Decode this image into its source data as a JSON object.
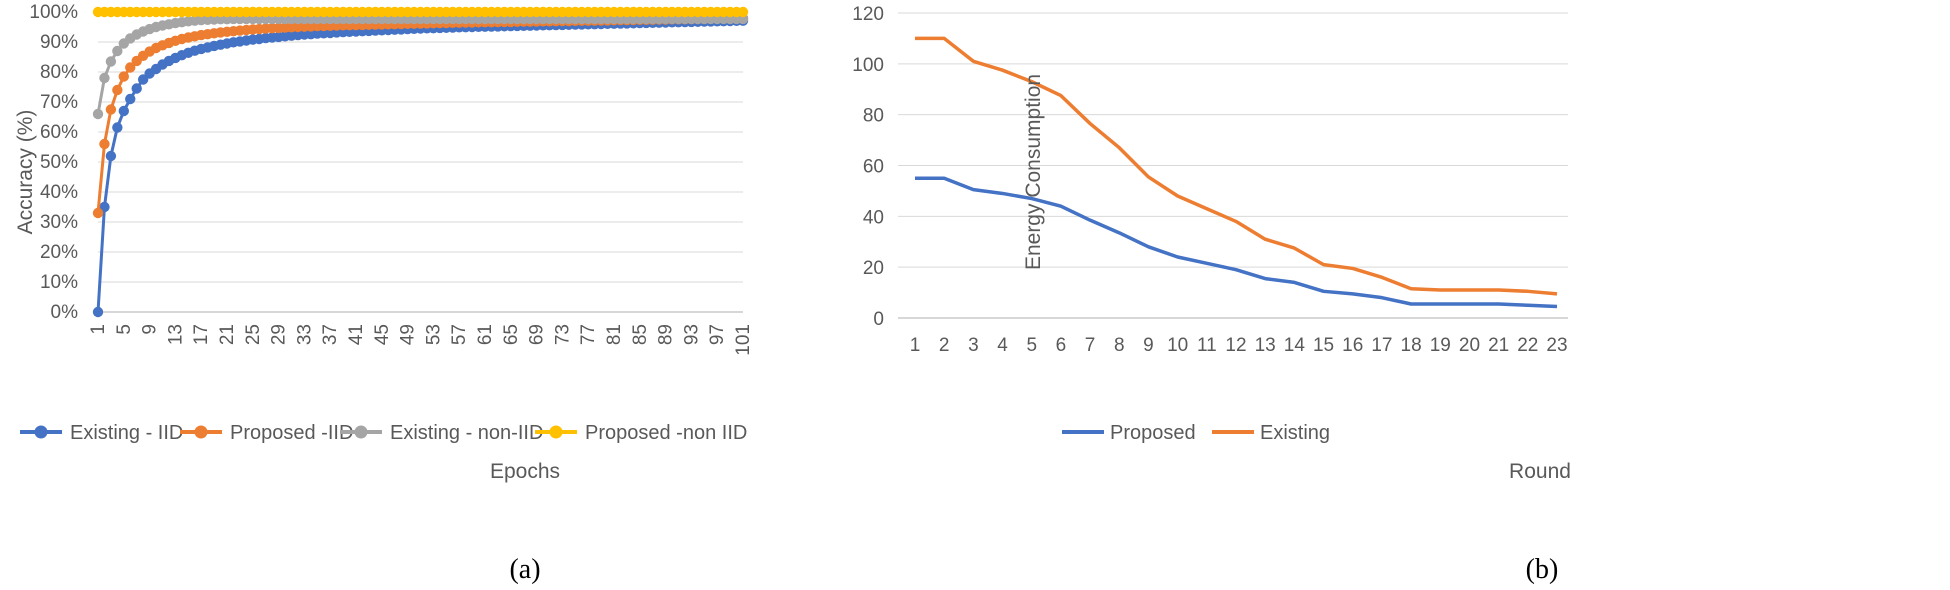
{
  "colors": {
    "blue": "#4472c4",
    "orange": "#ed7d31",
    "gray": "#a5a5a5",
    "yellow": "#ffc000",
    "grid": "#d9d9d9",
    "text": "#595959"
  },
  "captions": {
    "a": "(a)",
    "b": "(b)"
  },
  "chart_data": [
    {
      "type": "line",
      "xlabel": "Epochs",
      "ylabel": "Accuracy (%)",
      "ylim": [
        0,
        100
      ],
      "xlim": [
        1,
        101
      ],
      "y_ticks": [
        "0%",
        "10%",
        "20%",
        "30%",
        "40%",
        "50%",
        "60%",
        "70%",
        "80%",
        "90%",
        "100%"
      ],
      "x_ticks": [
        "1",
        "5",
        "9",
        "13",
        "17",
        "21",
        "25",
        "29",
        "33",
        "37",
        "41",
        "45",
        "49",
        "53",
        "57",
        "61",
        "65",
        "69",
        "73",
        "77",
        "81",
        "85",
        "89",
        "93",
        "97",
        "101"
      ],
      "grid": true,
      "legend": "bottom",
      "markers": true,
      "series": [
        {
          "name": "Existing - IID",
          "color": "#4472c4",
          "values": [
            0,
            35,
            52,
            61.5,
            67,
            71,
            74.5,
            77.5,
            79.5,
            81,
            82.5,
            83.7,
            84.7,
            85.6,
            86.4,
            87.1,
            87.7,
            88.2,
            88.7,
            89.1,
            89.5,
            89.9,
            90.2,
            90.5,
            90.8,
            91.0,
            91.3,
            91.5,
            91.7,
            91.9,
            92.1,
            92.3,
            92.5,
            92.6,
            92.8,
            92.9,
            93.0,
            93.2,
            93.3,
            93.4,
            93.5,
            93.6,
            93.7,
            93.8,
            93.9,
            94.0,
            94.1,
            94.2,
            94.3,
            94.4,
            94.5,
            94.55,
            94.6,
            94.7,
            94.75,
            94.8,
            94.9,
            94.95,
            95.0,
            95.05,
            95.1,
            95.15,
            95.2,
            95.25,
            95.3,
            95.35,
            95.4,
            95.45,
            95.5,
            95.55,
            95.6,
            95.65,
            95.7,
            95.75,
            95.8,
            95.85,
            95.9,
            95.95,
            96.0,
            96.05,
            96.1,
            96.15,
            96.2,
            96.25,
            96.3,
            96.35,
            96.4,
            96.45,
            96.5,
            96.55,
            96.6,
            96.65,
            96.7,
            96.75,
            96.8,
            96.85,
            96.9,
            96.95,
            97.0,
            97.05,
            97.1
          ]
        },
        {
          "name": "Proposed -IID",
          "color": "#ed7d31",
          "values": [
            33,
            56,
            67.5,
            74,
            78.5,
            81.5,
            83.7,
            85.4,
            86.8,
            88.0,
            88.9,
            89.7,
            90.4,
            91.0,
            91.5,
            91.9,
            92.3,
            92.6,
            92.9,
            93.2,
            93.4,
            93.6,
            93.8,
            94.0,
            94.2,
            94.3,
            94.5,
            94.6,
            94.7,
            94.8,
            94.9,
            95.0,
            95.1,
            95.2,
            95.3,
            95.35,
            95.4,
            95.5,
            95.55,
            95.6,
            95.65,
            95.7,
            95.75,
            95.8,
            95.85,
            95.9,
            95.95,
            96.0,
            96.05,
            96.1,
            96.15,
            96.2,
            96.25,
            96.3,
            96.35,
            96.4,
            96.45,
            96.5,
            96.5,
            96.55,
            96.6,
            96.6,
            96.65,
            96.7,
            96.7,
            96.75,
            96.8,
            96.8,
            96.85,
            96.9,
            96.9,
            96.95,
            97.0,
            97.0,
            97.05,
            97.1,
            97.1,
            97.15,
            97.2,
            97.2,
            97.25,
            97.3,
            97.3,
            97.35,
            97.4,
            97.4,
            97.45,
            97.5,
            97.5,
            97.55,
            97.6,
            97.6,
            97.65,
            97.7,
            97.7,
            97.75,
            97.8,
            97.8,
            97.85,
            97.9,
            97.9
          ]
        },
        {
          "name": "Existing  - non-IID",
          "color": "#a5a5a5",
          "values": [
            66,
            78,
            83.5,
            87,
            89.5,
            91.2,
            92.5,
            93.5,
            94.3,
            95.0,
            95.5,
            95.9,
            96.3,
            96.6,
            96.9,
            97.1,
            97.3,
            97.4,
            97.5,
            97.6,
            97.6,
            97.7,
            97.7,
            97.7,
            97.7,
            97.7,
            97.7,
            97.7,
            97.7,
            97.7,
            97.7,
            97.7,
            97.7,
            97.7,
            97.7,
            97.7,
            97.7,
            97.7,
            97.7,
            97.7,
            97.7,
            97.7,
            97.7,
            97.7,
            97.7,
            97.7,
            97.7,
            97.7,
            97.7,
            97.7,
            97.7,
            97.7,
            97.7,
            97.7,
            97.7,
            97.7,
            97.7,
            97.7,
            97.7,
            97.7,
            97.7,
            97.7,
            97.7,
            97.7,
            97.7,
            97.7,
            97.7,
            97.7,
            97.7,
            97.7,
            97.7,
            97.7,
            97.7,
            97.7,
            97.7,
            97.7,
            97.7,
            97.7,
            97.7,
            97.7,
            97.7,
            97.7,
            97.7,
            97.7,
            97.7,
            97.7,
            97.7,
            97.7,
            97.7,
            97.7,
            97.7,
            97.7,
            97.7,
            97.7,
            97.7,
            97.7,
            97.7,
            97.7,
            97.7,
            97.7,
            97.7
          ]
        },
        {
          "name": "Proposed -non IID",
          "color": "#ffc000",
          "values": [
            100,
            100,
            100,
            100,
            100,
            100,
            100,
            100,
            100,
            100,
            100,
            100,
            100,
            100,
            100,
            100,
            100,
            100,
            100,
            100,
            100,
            100,
            100,
            100,
            100,
            100,
            100,
            100,
            100,
            100,
            100,
            100,
            100,
            100,
            100,
            100,
            100,
            100,
            100,
            100,
            100,
            100,
            100,
            100,
            100,
            100,
            100,
            100,
            100,
            100,
            100,
            100,
            100,
            100,
            100,
            100,
            100,
            100,
            100,
            100,
            100,
            100,
            100,
            100,
            100,
            100,
            100,
            100,
            100,
            100,
            100,
            100,
            100,
            100,
            100,
            100,
            100,
            100,
            100,
            100,
            100,
            100,
            100,
            100,
            100,
            100,
            100,
            100,
            100,
            100,
            100,
            100,
            100,
            100,
            100,
            100,
            100,
            100,
            100,
            100,
            100
          ]
        }
      ]
    },
    {
      "type": "line",
      "xlabel": "Round",
      "ylabel": "Energy Consumption",
      "ylim": [
        0,
        120
      ],
      "y_ticks": [
        "0",
        "20",
        "40",
        "60",
        "80",
        "100",
        "120"
      ],
      "categories": [
        "1",
        "2",
        "3",
        "4",
        "5",
        "6",
        "7",
        "8",
        "9",
        "10",
        "11",
        "12",
        "13",
        "14",
        "15",
        "16",
        "17",
        "18",
        "19",
        "20",
        "21",
        "22",
        "23"
      ],
      "grid": true,
      "legend": "bottom",
      "markers": false,
      "series": [
        {
          "name": "Proposed",
          "color": "#4472c4",
          "values": [
            55,
            55,
            50.5,
            49,
            47,
            44,
            38.5,
            33.5,
            28,
            24,
            21.5,
            19,
            15.5,
            14,
            10.5,
            9.5,
            8,
            5.5,
            5.5,
            5.5,
            5.5,
            5,
            4.5
          ]
        },
        {
          "name": "Existing",
          "color": "#ed7d31",
          "values": [
            110,
            110,
            101,
            97.5,
            93,
            87.5,
            76.5,
            67,
            55.5,
            48,
            43,
            38,
            31,
            27.5,
            21,
            19.5,
            16,
            11.5,
            11,
            11,
            11,
            10.5,
            9.5
          ]
        }
      ]
    }
  ]
}
